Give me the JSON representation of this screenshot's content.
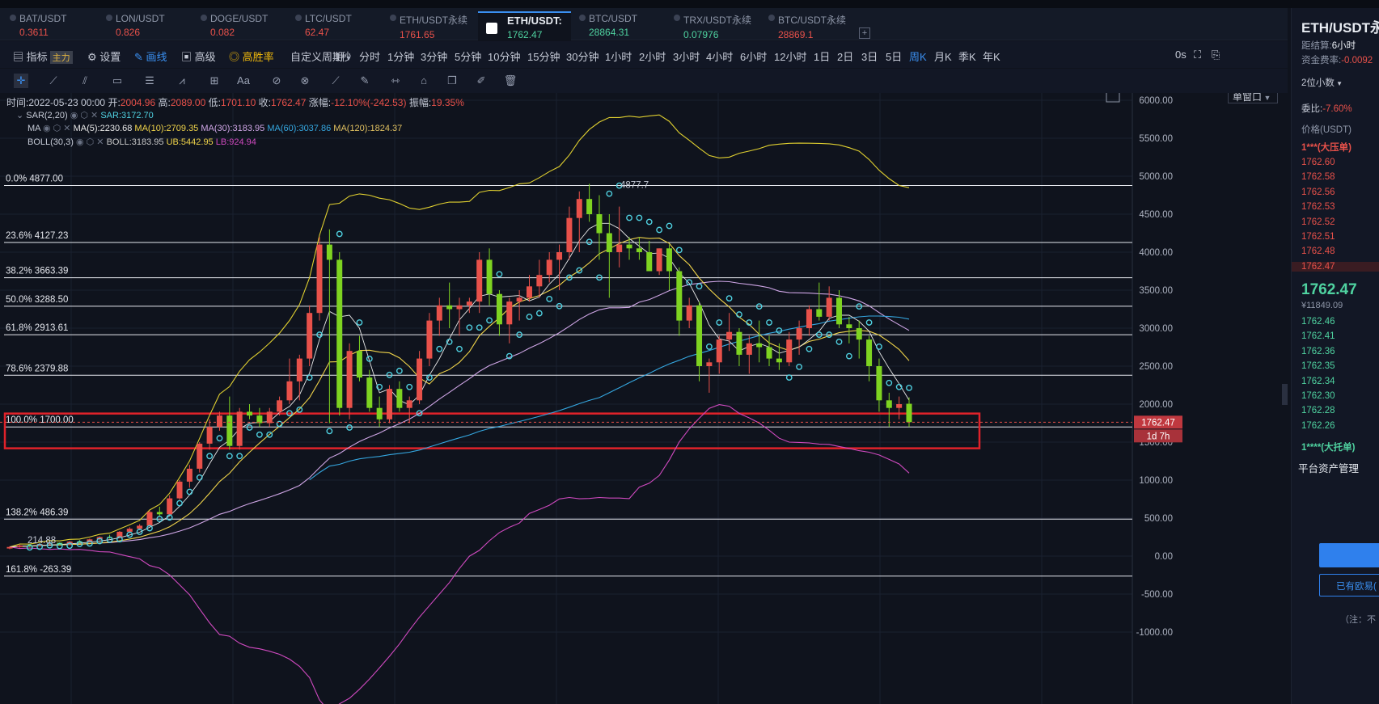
{
  "tabs": [
    {
      "name": "BAT/USDT",
      "price": "0.3611",
      "color": "#e8514a"
    },
    {
      "name": "LON/USDT",
      "price": "0.826",
      "color": "#e8514a"
    },
    {
      "name": "DOGE/USDT",
      "price": "0.082",
      "color": "#e8514a"
    },
    {
      "name": "LTC/USDT",
      "price": "62.47",
      "color": "#e8514a"
    },
    {
      "name": "ETH/USDT永续",
      "price": "1761.65",
      "color": "#e8514a"
    },
    {
      "name": "ETH/USDT:",
      "price": "1762.47",
      "color": "#4fd2a0"
    },
    {
      "name": "BTC/USDT",
      "price": "28864.31",
      "color": "#4fd2a0"
    },
    {
      "name": "TRX/USDT永续",
      "price": "0.07976",
      "color": "#4fd2a0"
    },
    {
      "name": "BTC/USDT永续",
      "price": "28869.1",
      "color": "#e8514a"
    }
  ],
  "toolbar": {
    "indicators": "指标",
    "indicators_badge": "主力",
    "settings": "设置",
    "draw": "画线",
    "advanced": "高级",
    "winrate": "高胜率",
    "custom_period": "自定义周期",
    "periods": [
      "1秒",
      "分时",
      "1分钟",
      "3分钟",
      "5分钟",
      "10分钟",
      "15分钟",
      "30分钟",
      "1小时",
      "2小时",
      "3小时",
      "4小时",
      "6小时",
      "12小时",
      "1日",
      "2日",
      "3日",
      "5日",
      "周K",
      "月K",
      "季K",
      "年K"
    ],
    "active_period": "周K",
    "countdown": "0s",
    "window_mode": "单窗口"
  },
  "info": {
    "time_label": "时间:",
    "time": "2022-05-23 00:00",
    "open_label": "开:",
    "open": "2004.96",
    "high_label": "高:",
    "high": "2089.00",
    "low_label": "低:",
    "low": "1701.10",
    "close_label": "收:",
    "close": "1762.47",
    "chg_label": "涨幅:",
    "chg": "-12.10%(-242.53)",
    "amp_label": "振幅:",
    "amp": "19.35%"
  },
  "indicators": {
    "sar": {
      "name": "SAR(2,20)",
      "value": "SAR:3172.70"
    },
    "ma": {
      "name": "MA",
      "ma5": "MA(5):2230.68",
      "ma10": "MA(10):2709.35",
      "ma30": "MA(30):3183.95",
      "ma60": "MA(60):3037.86",
      "ma120": "MA(120):1824.37"
    },
    "boll": {
      "name": "BOLL(30,3)",
      "boll": "BOLL:3183.95",
      "ub": "UB:5442.95",
      "lb": "LB:924.94"
    }
  },
  "fib_levels": [
    {
      "label": "0.0% 4877.00",
      "value": 4877
    },
    {
      "label": "23.6% 4127.23",
      "value": 4127.23
    },
    {
      "label": "38.2% 3663.39",
      "value": 3663.39
    },
    {
      "label": "50.0% 3288.50",
      "value": 3288.5
    },
    {
      "label": "61.8% 2913.61",
      "value": 2913.61
    },
    {
      "label": "78.6% 2379.88",
      "value": 2379.88
    },
    {
      "label": "100.0% 1700.00",
      "value": 1700
    },
    {
      "label": "138.2% 486.39",
      "value": 486.39
    },
    {
      "label": "161.8% -263.39",
      "value": -263.39
    }
  ],
  "chart_data": {
    "type": "candlestick",
    "ylim": [
      -1000,
      6000
    ],
    "yticks": [
      "6000.00",
      "5500.00",
      "5000.00",
      "4500.00",
      "4000.00",
      "3500.00",
      "3000.00",
      "2500.00",
      "2000.00",
      "1500.00",
      "1000.00",
      "500.00",
      "0.00",
      "-500.00",
      "-1000.00"
    ],
    "high_marker": "4877.7",
    "left_marker": "214.88",
    "current_price": "1762.47",
    "current_value": 1762.47,
    "countdown_label": "1d 7h",
    "candles": [
      [
        100,
        130,
        90,
        120
      ],
      [
        120,
        150,
        110,
        140
      ],
      [
        140,
        160,
        120,
        135
      ],
      [
        135,
        170,
        130,
        160
      ],
      [
        160,
        190,
        150,
        175
      ],
      [
        175,
        180,
        140,
        150
      ],
      [
        150,
        200,
        145,
        190
      ],
      [
        190,
        210,
        170,
        180
      ],
      [
        180,
        230,
        175,
        220
      ],
      [
        220,
        260,
        210,
        250
      ],
      [
        250,
        280,
        230,
        240
      ],
      [
        240,
        330,
        235,
        320
      ],
      [
        320,
        380,
        300,
        360
      ],
      [
        360,
        420,
        340,
        400
      ],
      [
        400,
        600,
        390,
        580
      ],
      [
        580,
        650,
        520,
        550
      ],
      [
        550,
        800,
        540,
        760
      ],
      [
        760,
        1000,
        740,
        980
      ],
      [
        980,
        1200,
        900,
        1150
      ],
      [
        1150,
        1500,
        1100,
        1480
      ],
      [
        1480,
        1800,
        1400,
        1700
      ],
      [
        1700,
        1900,
        1650,
        1850
      ],
      [
        1850,
        2100,
        1400,
        1450
      ],
      [
        1450,
        1950,
        1400,
        1900
      ],
      [
        1900,
        2000,
        1800,
        1850
      ],
      [
        1850,
        1950,
        1700,
        1750
      ],
      [
        1750,
        1950,
        1700,
        1900
      ],
      [
        1900,
        2100,
        1850,
        2050
      ],
      [
        2050,
        2600,
        2000,
        2300
      ],
      [
        2300,
        2650,
        2050,
        2600
      ],
      [
        2600,
        3300,
        2500,
        3200
      ],
      [
        3200,
        4200,
        3100,
        4100
      ],
      [
        4100,
        4300,
        1750,
        3900
      ],
      [
        3900,
        4000,
        1850,
        1950
      ],
      [
        1950,
        2800,
        1800,
        2700
      ],
      [
        2700,
        2900,
        2300,
        2350
      ],
      [
        2350,
        2450,
        1900,
        1950
      ],
      [
        1950,
        2100,
        1700,
        1800
      ],
      [
        1800,
        2250,
        1750,
        2200
      ],
      [
        2200,
        2300,
        1900,
        1950
      ],
      [
        1950,
        2100,
        1750,
        2050
      ],
      [
        2050,
        2700,
        2000,
        2600
      ],
      [
        2600,
        3200,
        2500,
        3100
      ],
      [
        3100,
        3400,
        2900,
        3300
      ],
      [
        3300,
        3600,
        3000,
        3250
      ],
      [
        3250,
        3400,
        2900,
        3300
      ],
      [
        3300,
        3400,
        3200,
        3350
      ],
      [
        3350,
        4000,
        3200,
        3900
      ],
      [
        3900,
        4050,
        3300,
        3450
      ],
      [
        3450,
        3500,
        2900,
        3050
      ],
      [
        3050,
        3400,
        2800,
        3350
      ],
      [
        3350,
        3500,
        3100,
        3400
      ],
      [
        3400,
        3700,
        3350,
        3550
      ],
      [
        3550,
        3900,
        3400,
        3700
      ],
      [
        3700,
        4000,
        3600,
        3900
      ],
      [
        3900,
        4100,
        3500,
        4000
      ],
      [
        4000,
        4600,
        3900,
        4450
      ],
      [
        4450,
        4800,
        4000,
        4700
      ],
      [
        4700,
        4900,
        4400,
        4500
      ],
      [
        4500,
        4750,
        3900,
        4250
      ],
      [
        4250,
        4500,
        3400,
        4000
      ],
      [
        4000,
        4600,
        3800,
        4100
      ],
      [
        4100,
        4200,
        3900,
        4050
      ],
      [
        4050,
        4200,
        3900,
        4000
      ],
      [
        4000,
        4150,
        3800,
        3750
      ],
      [
        3750,
        4050,
        3700,
        4050
      ],
      [
        4050,
        4100,
        3500,
        3750
      ],
      [
        3750,
        3800,
        2900,
        3100
      ],
      [
        3100,
        3400,
        3000,
        3300
      ],
      [
        3300,
        3350,
        2300,
        2500
      ],
      [
        2500,
        2600,
        2150,
        2550
      ],
      [
        2550,
        2900,
        2400,
        2850
      ],
      [
        2850,
        3200,
        2700,
        2950
      ],
      [
        2950,
        3000,
        2500,
        2650
      ],
      [
        2650,
        2900,
        2400,
        2800
      ],
      [
        2800,
        3100,
        2550,
        2750
      ],
      [
        2750,
        2900,
        2500,
        2600
      ],
      [
        2600,
        2800,
        2450,
        2550
      ],
      [
        2550,
        2950,
        2500,
        2850
      ],
      [
        2850,
        3100,
        2650,
        3000
      ],
      [
        3000,
        3300,
        2900,
        3250
      ],
      [
        3250,
        3600,
        3100,
        3150
      ],
      [
        3150,
        3550,
        3100,
        3400
      ],
      [
        3400,
        3500,
        3000,
        3050
      ],
      [
        3050,
        3150,
        2800,
        3000
      ],
      [
        3000,
        3100,
        2600,
        2850
      ],
      [
        2850,
        2900,
        2300,
        2500
      ],
      [
        2500,
        2600,
        1900,
        2050
      ],
      [
        2050,
        2150,
        1700,
        1950
      ],
      [
        1950,
        2100,
        1800,
        2000
      ],
      [
        2005,
        2089,
        1701,
        1762
      ]
    ]
  },
  "right_panel": {
    "symbol": "ETH/USDT永",
    "settle_label": "距结算:",
    "settle_value": "6小时",
    "funding_label": "资金费率:",
    "funding_value": "-0.0092",
    "decimals": "2位小数",
    "ratio_label": "委比:",
    "ratio_value": "-7.60%",
    "price_header": "价格(USDT)",
    "sell_pressure": "1***(大压单)",
    "asks": [
      "1762.60",
      "1762.58",
      "1762.56",
      "1762.53",
      "1762.52",
      "1762.51",
      "1762.48",
      "1762.47"
    ],
    "last_price": "1762.47",
    "cny_price": "¥11849.09",
    "bids": [
      "1762.46",
      "1762.41",
      "1762.36",
      "1762.35",
      "1762.34",
      "1762.30",
      "1762.28",
      "1762.26"
    ],
    "buy_support": "1****(大托单)",
    "asset_mgmt": "平台资产管理",
    "button_label": "",
    "outline_button": "已有欧易(",
    "note": "（注：不"
  },
  "colors": {
    "up": "#e8514a",
    "down": "#7ed321",
    "accent": "#3a8ff0",
    "sar": "#4fd0e0",
    "ma5": "#e8e8e8",
    "ma10": "#f0d44a",
    "ma30": "#cfa6e6",
    "ma60": "#35a7e0",
    "ma120": "#e0c060",
    "bollOuter": "#e0d030",
    "bollLower": "#d04ac0",
    "highlight": "#e0222a"
  }
}
